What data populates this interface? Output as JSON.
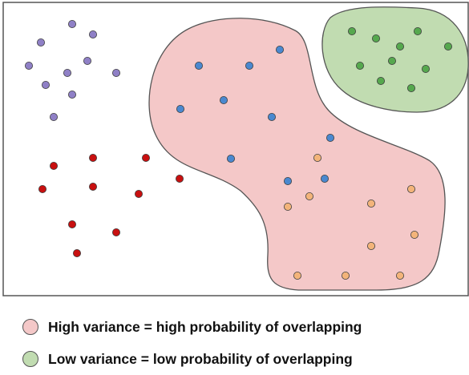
{
  "colors": {
    "frame": "#555555",
    "high_region_fill": "#f4c8c8",
    "low_region_fill": "#c1dcb1",
    "region_stroke": "#555555",
    "point_stroke": "#3d3d3d",
    "purple": "#8f80c6",
    "red": "#c81010",
    "blue": "#4a88cf",
    "orange": "#f3b47a",
    "green": "#56a84e"
  },
  "regions": [
    {
      "name": "high-variance-region",
      "fill_key": "high_region_fill"
    },
    {
      "name": "low-variance-region",
      "fill_key": "low_region_fill"
    }
  ],
  "clusters": [
    {
      "name": "purple",
      "color_key": "purple",
      "points": [
        [
          90,
          30
        ],
        [
          116,
          43
        ],
        [
          51,
          53
        ],
        [
          36,
          82
        ],
        [
          109,
          76
        ],
        [
          84,
          91
        ],
        [
          145,
          91
        ],
        [
          57,
          106
        ],
        [
          90,
          118
        ],
        [
          67,
          146
        ]
      ]
    },
    {
      "name": "red",
      "color_key": "red",
      "points": [
        [
          116,
          197
        ],
        [
          182,
          197
        ],
        [
          67,
          207
        ],
        [
          224,
          223
        ],
        [
          53,
          236
        ],
        [
          116,
          233
        ],
        [
          173,
          242
        ],
        [
          90,
          280
        ],
        [
          145,
          290
        ],
        [
          96,
          316
        ]
      ]
    },
    {
      "name": "blue",
      "color_key": "blue",
      "points": [
        [
          349,
          62
        ],
        [
          248,
          82
        ],
        [
          311,
          82
        ],
        [
          279,
          125
        ],
        [
          225,
          136
        ],
        [
          339,
          146
        ],
        [
          412,
          172
        ],
        [
          288,
          198
        ],
        [
          405,
          223
        ],
        [
          359,
          226
        ]
      ]
    },
    {
      "name": "orange",
      "color_key": "orange",
      "points": [
        [
          396,
          197
        ],
        [
          513,
          236
        ],
        [
          386,
          245
        ],
        [
          359,
          258
        ],
        [
          463,
          254
        ],
        [
          517,
          293
        ],
        [
          463,
          307
        ],
        [
          371,
          344
        ],
        [
          431,
          344
        ],
        [
          499,
          344
        ]
      ]
    },
    {
      "name": "green",
      "color_key": "green",
      "points": [
        [
          439,
          39
        ],
        [
          469,
          48
        ],
        [
          521,
          39
        ],
        [
          499,
          58
        ],
        [
          559,
          58
        ],
        [
          489,
          76
        ],
        [
          449,
          82
        ],
        [
          531,
          86
        ],
        [
          475,
          101
        ],
        [
          513,
          110
        ]
      ]
    }
  ],
  "legend": {
    "high": {
      "label": "High variance = high probability of overlapping",
      "color_key": "high_region_fill"
    },
    "low": {
      "label": "Low variance = low probability of overlapping",
      "color_key": "low_region_fill"
    }
  }
}
